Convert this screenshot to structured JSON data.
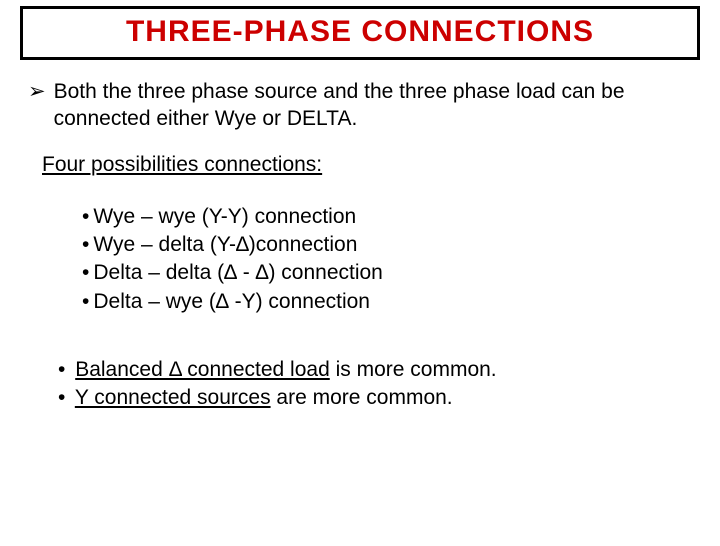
{
  "title": "THREE-PHASE CONNECTIONS",
  "title_color": "#cc0000",
  "title_border_color": "#000000",
  "title_fontsize": 30,
  "body_fontsize": 21,
  "background_color": "#ffffff",
  "bullet1": {
    "marker": "➢",
    "text": "Both the three phase source and the three phase load can be connected either Wye or DELTA."
  },
  "subhead": "Four possibilities connections:",
  "list1": [
    "Wye – wye (Y-Y) connection",
    "Wye – delta (Y-∆)connection",
    "Delta – delta (∆ - ∆) connection",
    "Delta – wye (∆ -Y) connection"
  ],
  "list2": [
    {
      "underlined": "Balanced Δ connected load",
      "rest": " is more common."
    },
    {
      "underlined": "Y connected sources",
      "rest": " are more common."
    }
  ]
}
